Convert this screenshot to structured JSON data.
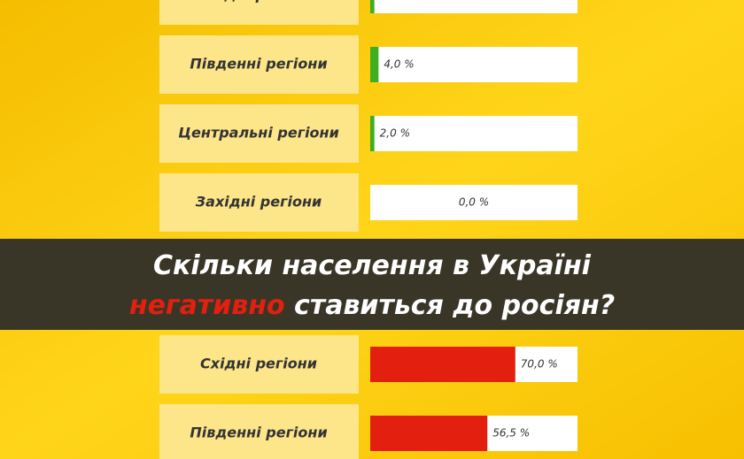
{
  "chart_data": [
    {
      "type": "bar",
      "orientation": "horizontal",
      "categories": [
        "Східні регіони",
        "Південні регіони",
        "Центральні регіони",
        "Західні регіони"
      ],
      "values": [
        2.0,
        4.0,
        2.0,
        0.0
      ],
      "value_labels": [
        null,
        "4,0 %",
        "2,0 %",
        "0,0 %"
      ],
      "color": "#3fae1f",
      "xlim": [
        0,
        100
      ]
    },
    {
      "type": "bar",
      "orientation": "horizontal",
      "categories": [
        "Східні регіони",
        "Південні регіони"
      ],
      "values": [
        70.0,
        56.5
      ],
      "value_labels": [
        "70,0 %",
        "56,5 %"
      ],
      "color": "#e3200f",
      "xlim": [
        0,
        100
      ]
    }
  ],
  "banner": {
    "line1": "Скільки населення в Україні",
    "highlight": "негативно",
    "line2": "ставиться до росіян?"
  }
}
